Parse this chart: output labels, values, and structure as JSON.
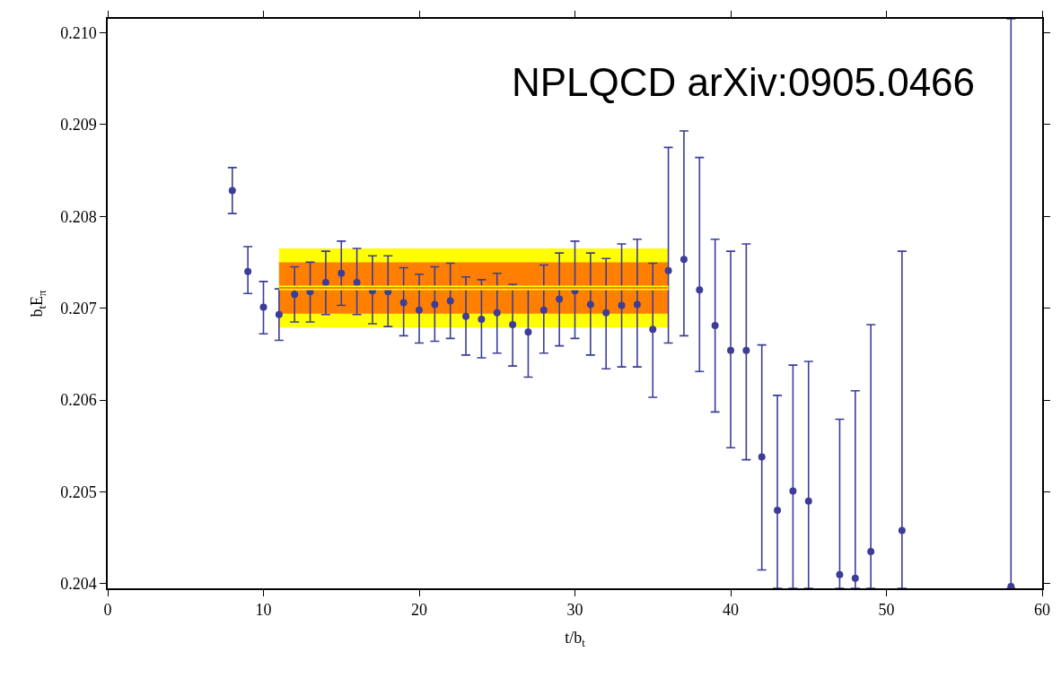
{
  "chart_data": {
    "type": "scatter",
    "xlabel": "t/b$_{t}$",
    "ylabel": "b$_{t}$E$_{π}$",
    "annotations": [
      "NPLQCD arXiv:0905.0466"
    ],
    "xlim": [
      0,
      60
    ],
    "xticks": [
      0,
      10,
      20,
      30,
      40,
      50,
      60
    ],
    "ylim": [
      0.20395,
      0.21015
    ],
    "yticks": [
      {
        "value": 0.204,
        "label": "0.204"
      },
      {
        "value": 0.205,
        "label": "0.205"
      },
      {
        "value": 0.206,
        "label": "0.206"
      },
      {
        "value": 0.207,
        "label": "0.207"
      },
      {
        "value": 0.208,
        "label": "0.208"
      },
      {
        "value": 0.209,
        "label": "0.209"
      },
      {
        "value": 0.21,
        "label": "0.210"
      }
    ],
    "marker": "circle",
    "series": [
      {
        "type": "line",
        "marker": "none",
        "color": "#ffff00",
        "x": [
          11,
          36
        ],
        "values": [
          0.20722,
          0.20722
        ],
        "lower": [
          0.20679,
          0.20679
        ],
        "upper": [
          0.20765,
          0.20765
        ]
      },
      {
        "type": "line",
        "marker": "none",
        "color": "#ff7f00",
        "x": [
          11,
          36
        ],
        "values": [
          0.20722,
          0.20722
        ],
        "lower": [
          0.20694,
          0.20694
        ],
        "upper": [
          0.2075,
          0.2075
        ]
      },
      {
        "color": "#3d3d99",
        "x": [
          8,
          9,
          10,
          11,
          12,
          13,
          14,
          15,
          16,
          17,
          18,
          19,
          20,
          21,
          22,
          23,
          24,
          25,
          26,
          27,
          28,
          29,
          30,
          31,
          32,
          33,
          34,
          35,
          36,
          37,
          38,
          39,
          40,
          41,
          42,
          43,
          44,
          45,
          47,
          48,
          49,
          51,
          58
        ],
        "values": [
          0.20828,
          0.2074,
          0.20701,
          0.20693,
          0.20715,
          0.20718,
          0.20728,
          0.20738,
          0.20728,
          0.20719,
          0.20718,
          0.20706,
          0.20698,
          0.20704,
          0.20708,
          0.20691,
          0.20688,
          0.20695,
          0.20682,
          0.20674,
          0.20698,
          0.2071,
          0.20719,
          0.20704,
          0.20695,
          0.20703,
          0.20704,
          0.20677,
          0.20741,
          0.20753,
          0.2072,
          0.20681,
          0.20654,
          0.20654,
          0.20538,
          0.2048,
          0.20501,
          0.2049,
          0.2041,
          0.20406,
          0.20435,
          0.20458,
          0.20397
        ],
        "errors": [
          [
            0.20803,
            0.20853
          ],
          [
            0.20716,
            0.20767
          ],
          [
            0.20672,
            0.20729
          ],
          [
            0.20665,
            0.20721
          ],
          [
            0.20685,
            0.20745
          ],
          [
            0.20685,
            0.2075
          ],
          [
            0.20693,
            0.20762
          ],
          [
            0.20703,
            0.20773
          ],
          [
            0.20693,
            0.20765
          ],
          [
            0.20683,
            0.20757
          ],
          [
            0.2068,
            0.20757
          ],
          [
            0.2067,
            0.20744
          ],
          [
            0.20662,
            0.20737
          ],
          [
            0.20664,
            0.20745
          ],
          [
            0.20667,
            0.20749
          ],
          [
            0.20649,
            0.20734
          ],
          [
            0.20646,
            0.20731
          ],
          [
            0.20651,
            0.20738
          ],
          [
            0.20637,
            0.20726
          ],
          [
            0.20625,
            0.20721
          ],
          [
            0.20651,
            0.20747
          ],
          [
            0.20659,
            0.2076
          ],
          [
            0.20667,
            0.20773
          ],
          [
            0.20649,
            0.2076
          ],
          [
            0.20634,
            0.20754
          ],
          [
            0.20636,
            0.2077
          ],
          [
            0.20636,
            0.20775
          ],
          [
            0.20603,
            0.20749
          ],
          [
            0.20662,
            0.20875
          ],
          [
            0.2067,
            0.20893
          ],
          [
            0.20631,
            0.20864
          ],
          [
            0.20587,
            0.20775
          ],
          [
            0.20548,
            0.20762
          ],
          [
            0.20535,
            0.2077
          ],
          [
            0.20415,
            0.2066
          ],
          [
            0.20395,
            0.20605
          ],
          [
            0.20395,
            0.20638
          ],
          [
            0.20395,
            0.20642
          ],
          [
            0.20395,
            0.20579
          ],
          [
            0.20395,
            0.2061
          ],
          [
            0.20395,
            0.20682
          ],
          [
            0.20395,
            0.20762
          ],
          [
            0.20395,
            0.21015
          ]
        ]
      }
    ]
  }
}
